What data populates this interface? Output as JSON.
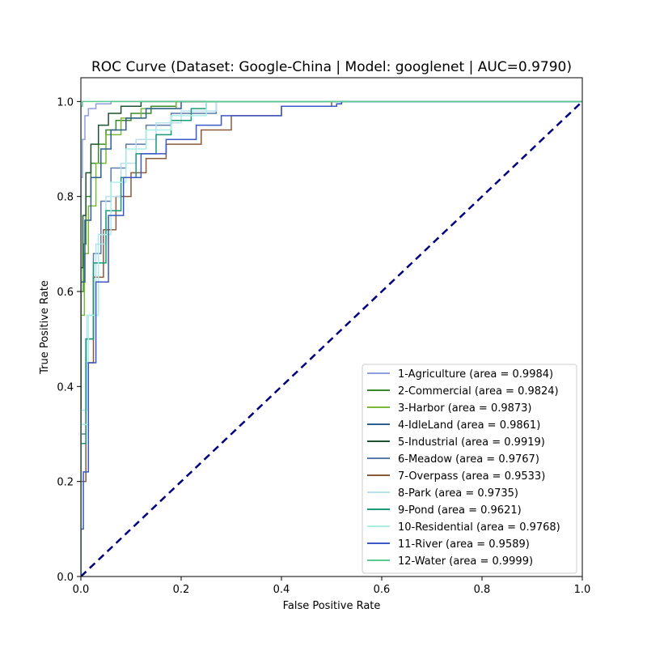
{
  "chart_data": {
    "type": "line",
    "title": "ROC Curve (Dataset: Google-China | Model: googlenet | AUC=0.9790)",
    "xlabel": "False Positive Rate",
    "ylabel": "True Positive Rate",
    "xlim": [
      0.0,
      1.0
    ],
    "ylim": [
      0.0,
      1.05
    ],
    "xticks": [
      "0.0",
      "0.2",
      "0.4",
      "0.6",
      "0.8",
      "1.0"
    ],
    "yticks": [
      "0.0",
      "0.2",
      "0.4",
      "0.6",
      "0.8",
      "1.0"
    ],
    "grid": false,
    "legend_position": "lower-right",
    "series": [
      {
        "name": "1-Agriculture (area = 0.9984)",
        "color": "#8f9fe0",
        "points": [
          [
            0,
            0
          ],
          [
            0,
            0.84
          ],
          [
            0.003,
            0.92
          ],
          [
            0.008,
            0.97
          ],
          [
            0.015,
            0.985
          ],
          [
            0.03,
            0.995
          ],
          [
            0.06,
            1.0
          ],
          [
            1,
            1
          ]
        ]
      },
      {
        "name": "2-Commercial (area = 0.9824)",
        "color": "#3a8a2a",
        "points": [
          [
            0,
            0
          ],
          [
            0,
            0.6
          ],
          [
            0.005,
            0.7
          ],
          [
            0.01,
            0.8
          ],
          [
            0.02,
            0.87
          ],
          [
            0.035,
            0.91
          ],
          [
            0.05,
            0.94
          ],
          [
            0.07,
            0.96
          ],
          [
            0.1,
            0.975
          ],
          [
            0.14,
            0.99
          ],
          [
            0.19,
            1.0
          ],
          [
            1,
            1
          ]
        ]
      },
      {
        "name": "3-Harbor (area = 0.9873)",
        "color": "#7ab83a",
        "points": [
          [
            0,
            0
          ],
          [
            0,
            0.55
          ],
          [
            0.007,
            0.68
          ],
          [
            0.015,
            0.78
          ],
          [
            0.03,
            0.87
          ],
          [
            0.05,
            0.93
          ],
          [
            0.08,
            0.965
          ],
          [
            0.12,
            0.985
          ],
          [
            0.19,
            1.0
          ],
          [
            1,
            1
          ]
        ]
      },
      {
        "name": "4-IdleLand (area = 0.9861)",
        "color": "#2e5e8e",
        "points": [
          [
            0,
            0
          ],
          [
            0,
            0.62
          ],
          [
            0.008,
            0.75
          ],
          [
            0.02,
            0.84
          ],
          [
            0.04,
            0.9
          ],
          [
            0.06,
            0.94
          ],
          [
            0.09,
            0.965
          ],
          [
            0.13,
            0.985
          ],
          [
            0.2,
            1.0
          ],
          [
            1,
            1
          ]
        ]
      },
      {
        "name": "5-Industrial (area = 0.9919)",
        "color": "#1e5230",
        "points": [
          [
            0,
            0
          ],
          [
            0,
            0.65
          ],
          [
            0.004,
            0.76
          ],
          [
            0.01,
            0.85
          ],
          [
            0.02,
            0.91
          ],
          [
            0.035,
            0.95
          ],
          [
            0.055,
            0.975
          ],
          [
            0.08,
            0.99
          ],
          [
            0.12,
            1.0
          ],
          [
            1,
            1
          ]
        ]
      },
      {
        "name": "6-Meadow (area = 0.9767)",
        "color": "#5a7aaa",
        "points": [
          [
            0,
            0
          ],
          [
            0,
            0.3
          ],
          [
            0.01,
            0.5
          ],
          [
            0.025,
            0.68
          ],
          [
            0.04,
            0.79
          ],
          [
            0.06,
            0.86
          ],
          [
            0.09,
            0.91
          ],
          [
            0.13,
            0.95
          ],
          [
            0.18,
            0.975
          ],
          [
            0.27,
            1.0
          ],
          [
            1,
            1
          ]
        ]
      },
      {
        "name": "7-Overpass (area = 0.9533)",
        "color": "#8a5a3a",
        "points": [
          [
            0,
            0
          ],
          [
            0,
            0.2
          ],
          [
            0.01,
            0.45
          ],
          [
            0.025,
            0.63
          ],
          [
            0.045,
            0.73
          ],
          [
            0.07,
            0.8
          ],
          [
            0.1,
            0.85
          ],
          [
            0.13,
            0.88
          ],
          [
            0.17,
            0.91
          ],
          [
            0.24,
            0.94
          ],
          [
            0.3,
            0.97
          ],
          [
            0.4,
            0.99
          ],
          [
            0.5,
            1.0
          ],
          [
            1,
            1
          ]
        ]
      },
      {
        "name": "8-Park (area = 0.9735)",
        "color": "#b8e0ee",
        "points": [
          [
            0,
            0
          ],
          [
            0,
            0.35
          ],
          [
            0.012,
            0.55
          ],
          [
            0.03,
            0.7
          ],
          [
            0.05,
            0.8
          ],
          [
            0.08,
            0.87
          ],
          [
            0.11,
            0.92
          ],
          [
            0.15,
            0.955
          ],
          [
            0.2,
            0.98
          ],
          [
            0.27,
            1.0
          ],
          [
            1,
            1
          ]
        ]
      },
      {
        "name": "9-Pond (area = 0.9621)",
        "color": "#1a9a78",
        "points": [
          [
            0,
            0
          ],
          [
            0,
            0.28
          ],
          [
            0.01,
            0.5
          ],
          [
            0.025,
            0.66
          ],
          [
            0.05,
            0.77
          ],
          [
            0.08,
            0.84
          ],
          [
            0.11,
            0.89
          ],
          [
            0.15,
            0.93
          ],
          [
            0.18,
            0.96
          ],
          [
            0.22,
            0.985
          ],
          [
            0.25,
            1.0
          ],
          [
            1,
            1
          ]
        ]
      },
      {
        "name": "10-Residential (area = 0.9768)",
        "color": "#a8f0e6",
        "points": [
          [
            0,
            0
          ],
          [
            0,
            0.32
          ],
          [
            0.015,
            0.55
          ],
          [
            0.035,
            0.72
          ],
          [
            0.06,
            0.83
          ],
          [
            0.09,
            0.9
          ],
          [
            0.13,
            0.94
          ],
          [
            0.18,
            0.97
          ],
          [
            0.25,
            1.0
          ],
          [
            1,
            1
          ]
        ]
      },
      {
        "name": "11-River (area = 0.9589)",
        "color": "#3a58c8",
        "points": [
          [
            0,
            0
          ],
          [
            0,
            0.1
          ],
          [
            0.005,
            0.22
          ],
          [
            0.015,
            0.45
          ],
          [
            0.03,
            0.62
          ],
          [
            0.055,
            0.76
          ],
          [
            0.085,
            0.84
          ],
          [
            0.12,
            0.89
          ],
          [
            0.17,
            0.92
          ],
          [
            0.23,
            0.95
          ],
          [
            0.28,
            0.97
          ],
          [
            0.4,
            0.99
          ],
          [
            0.51,
            0.995
          ],
          [
            0.52,
            1.0
          ],
          [
            1,
            1
          ]
        ]
      },
      {
        "name": "12-Water (area = 0.9999)",
        "color": "#5ac890",
        "points": [
          [
            0,
            0
          ],
          [
            0,
            0.99
          ],
          [
            0.003,
            1.0
          ],
          [
            1,
            1
          ]
        ]
      }
    ],
    "reference_line": {
      "points": [
        [
          0,
          0
        ],
        [
          1,
          1
        ]
      ],
      "color": "#000080",
      "style": "dashed"
    }
  }
}
